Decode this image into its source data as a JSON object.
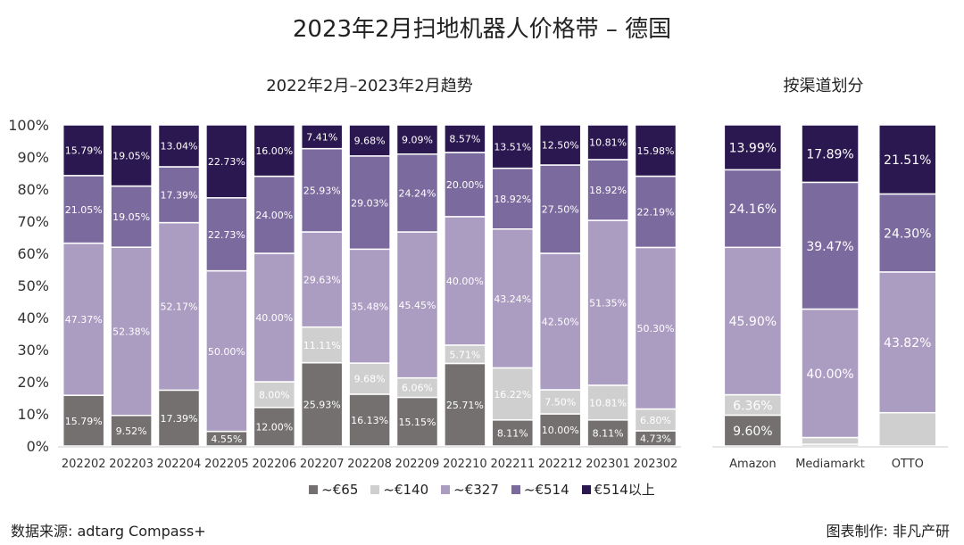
{
  "title": "2023年2月扫地机器人价格带 – 德国",
  "footer": {
    "source": "数据来源: adtarg Compass+",
    "maker": "图表制作: 非凡产研"
  },
  "colors": {
    "~€65": "#747070",
    "~€140": "#d0cfcf",
    "~€327": "#ab9cc2",
    "~€514": "#7b6a9e",
    "€514以上": "#2c1850"
  },
  "chart_data": [
    {
      "type": "bar",
      "stacked": true,
      "title": "2022年2月–2023年2月趋势",
      "categories": [
        "202202",
        "202203",
        "202204",
        "202205",
        "202206",
        "202207",
        "202208",
        "202209",
        "202210",
        "202211",
        "202212",
        "202301",
        "202302"
      ],
      "ylim": [
        0,
        100
      ],
      "yticks": [
        "0%",
        "10%",
        "20%",
        "30%",
        "40%",
        "50%",
        "60%",
        "70%",
        "80%",
        "90%",
        "100%"
      ],
      "legend": "bottom",
      "series": [
        {
          "name": "~€65",
          "values": [
            15.79,
            9.52,
            17.39,
            4.55,
            12.0,
            25.93,
            16.13,
            15.15,
            25.71,
            8.11,
            10.0,
            8.11,
            4.73
          ]
        },
        {
          "name": "~€140",
          "values": [
            0.0,
            0.0,
            0.0,
            0.0,
            8.0,
            11.11,
            9.68,
            6.06,
            5.71,
            16.22,
            7.5,
            10.81,
            6.8
          ]
        },
        {
          "name": "~€327",
          "values": [
            47.37,
            52.38,
            52.17,
            50.0,
            40.0,
            29.63,
            35.48,
            45.45,
            40.0,
            43.24,
            42.5,
            51.35,
            50.3
          ]
        },
        {
          "name": "~€514",
          "values": [
            21.05,
            19.05,
            17.39,
            22.73,
            24.0,
            25.93,
            29.03,
            24.24,
            20.0,
            18.92,
            27.5,
            18.92,
            22.19
          ]
        },
        {
          "name": "€514以上",
          "values": [
            15.79,
            19.05,
            13.04,
            22.73,
            16.0,
            7.41,
            9.68,
            9.09,
            8.57,
            13.51,
            12.5,
            10.81,
            15.98
          ]
        }
      ]
    },
    {
      "type": "bar",
      "stacked": true,
      "title": "按渠道划分",
      "categories": [
        "Amazon",
        "Mediamarkt",
        "OTTO"
      ],
      "ylim": [
        0,
        100
      ],
      "series": [
        {
          "name": "~€65",
          "values": [
            9.6,
            0.53,
            0
          ],
          "labeled": [
            true,
            false,
            false
          ]
        },
        {
          "name": "~€140",
          "values": [
            6.36,
            2.11,
            10.37
          ],
          "labeled": [
            true,
            false,
            false
          ]
        },
        {
          "name": "~€327",
          "values": [
            45.9,
            40.0,
            43.82
          ],
          "labeled": [
            true,
            true,
            true
          ]
        },
        {
          "name": "~€514",
          "values": [
            24.16,
            39.47,
            24.3
          ],
          "labeled": [
            true,
            true,
            true
          ]
        },
        {
          "name": "€514以上",
          "values": [
            13.99,
            17.89,
            21.51
          ],
          "labeled": [
            true,
            true,
            true
          ]
        }
      ]
    }
  ]
}
